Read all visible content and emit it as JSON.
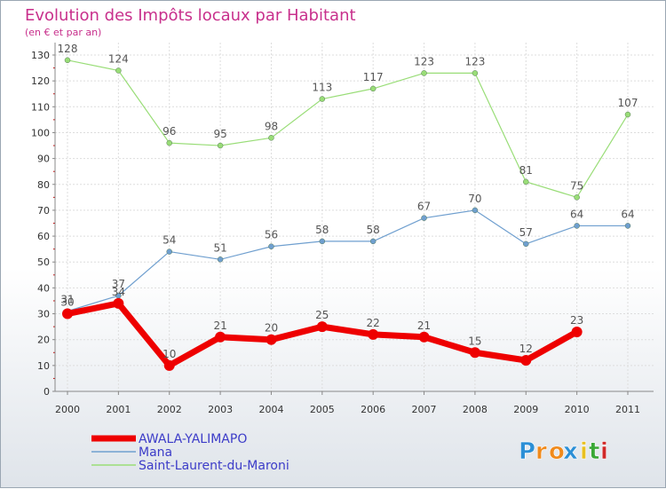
{
  "chart_data": {
    "type": "line",
    "title": "Evolution des Impôts locaux par Habitant",
    "subtitle": "(en € et par an)",
    "xlabel": "",
    "ylabel": "",
    "ylim": [
      0,
      130
    ],
    "yticks": [
      0,
      10,
      20,
      30,
      40,
      50,
      60,
      70,
      80,
      90,
      100,
      110,
      120,
      130
    ],
    "categories": [
      "2000",
      "2001",
      "2002",
      "2003",
      "2004",
      "2005",
      "2006",
      "2007",
      "2008",
      "2009",
      "2010",
      "2011"
    ],
    "grid": true,
    "legend_position": "bottom-left",
    "series": [
      {
        "name": "AWALA-YALIMAPO",
        "color": "#ee0000",
        "values": [
          30,
          34,
          10,
          21,
          20,
          25,
          22,
          21,
          15,
          12,
          23,
          null
        ],
        "labels": [
          "30",
          "34",
          "10",
          "21",
          "20",
          "25",
          "22",
          "21",
          "15",
          "12",
          "23",
          ""
        ]
      },
      {
        "name": "Mana",
        "color": "#6f9fcf",
        "values": [
          31,
          37,
          54,
          51,
          56,
          58,
          58,
          67,
          70,
          57,
          64,
          64
        ],
        "labels": [
          "31",
          "37",
          "54",
          "51",
          "56",
          "58",
          "58",
          "67",
          "70",
          "57",
          "64",
          "64"
        ]
      },
      {
        "name": "Saint-Laurent-du-Maroni",
        "color": "#99dd77",
        "values": [
          128,
          124,
          96,
          95,
          98,
          113,
          117,
          123,
          123,
          81,
          75,
          107
        ],
        "labels": [
          "128",
          "124",
          "96",
          "95",
          "98",
          "113",
          "117",
          "123",
          "123",
          "81",
          "75",
          "107"
        ]
      }
    ]
  },
  "logo": {
    "letters": [
      "P",
      "r",
      "o",
      "x",
      "i",
      "t",
      "i"
    ],
    "colors": [
      "#2b8fd6",
      "#f08a1c",
      "#f08a1c",
      "#2b8fd6",
      "#e8c020",
      "#3aa836",
      "#d02828"
    ]
  }
}
